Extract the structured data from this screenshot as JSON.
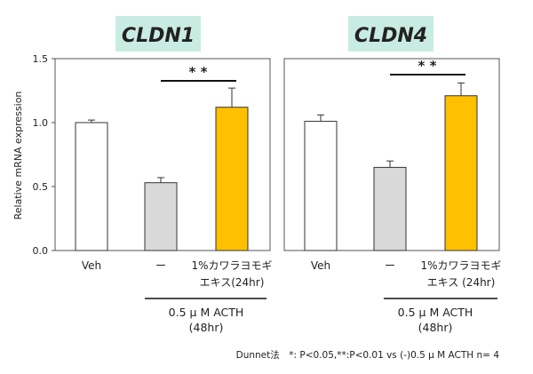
{
  "y_axis_label": "Relative mRNA expression",
  "footnote": "Dunnet法　*: P<0.05,**:P<0.01  vs (-)0.5 μ M ACTH n= 4",
  "colors": {
    "vehicle": "#ffffff",
    "minus": "#d9d9d9",
    "treatment": "#ffc000",
    "title_bg": "#c9ece2",
    "axis": "#222222"
  },
  "chart_data": [
    {
      "type": "bar",
      "title": "CLDN1",
      "ylabel": "Relative mRNA expression",
      "ylim": [
        0,
        1.5
      ],
      "yticks": [
        "0.0",
        "0.5",
        "1.0",
        "1.5"
      ],
      "categories": [
        "Veh",
        "ー",
        "1%カワラヨモギ エキス(24hr)"
      ],
      "category_lines": [
        [
          "Veh"
        ],
        [
          "ー"
        ],
        [
          "1%カワラヨモギ",
          "エキス(24hr)"
        ]
      ],
      "values": [
        1.0,
        0.53,
        1.12
      ],
      "errors": [
        0.02,
        0.04,
        0.15
      ],
      "group_label_lines": [
        "0.5 μ M ACTH",
        "(48hr)"
      ],
      "significance": {
        "from": 1,
        "to": 2,
        "label": "* *"
      }
    },
    {
      "type": "bar",
      "title": "CLDN4",
      "ylabel": "",
      "ylim": [
        0,
        1.5
      ],
      "yticks": [],
      "categories": [
        "Veh",
        "ー",
        "1%カワラヨモギ エキス (24hr)"
      ],
      "category_lines": [
        [
          "Veh"
        ],
        [
          "ー"
        ],
        [
          "1%カワラヨモギ",
          "エキス (24hr)"
        ]
      ],
      "values": [
        1.01,
        0.65,
        1.21
      ],
      "errors": [
        0.05,
        0.05,
        0.1
      ],
      "group_label_lines": [
        "0.5 μ M ACTH",
        "(48hr)"
      ],
      "significance": {
        "from": 1,
        "to": 2,
        "label": "* *"
      }
    }
  ]
}
